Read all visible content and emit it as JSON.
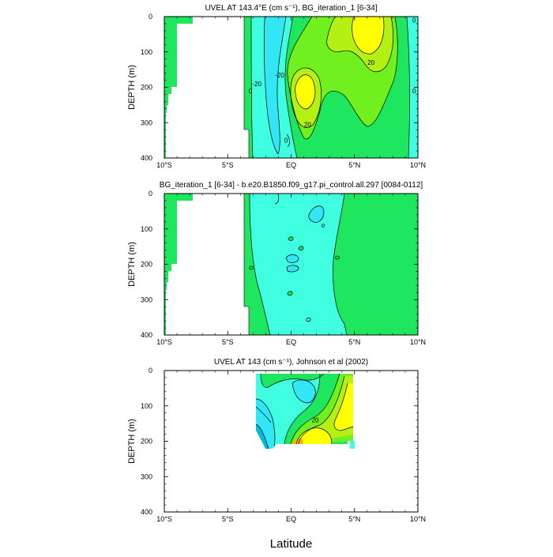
{
  "figure": {
    "xlabel": "Latitude"
  },
  "colors": {
    "cyan_dark": "#00bcd8",
    "cyan": "#33e6f5",
    "cyan_light": "#40ffe0",
    "green": "#1ee65f",
    "green_light": "#70f01e",
    "green_yellow": "#b4f014",
    "yellow": "#ffff00",
    "orange": "#ffb000",
    "line": "#000000"
  },
  "chart_data": [
    {
      "type": "contour",
      "title": "UVEL AT 143.4°E (cm s⁻¹), BG_iteration_1 [6-34]",
      "ylabel": "DEPTH (m)",
      "xlim": [
        -10,
        10
      ],
      "ylim": [
        400,
        0
      ],
      "x_ticks": [
        -10,
        -5,
        0,
        5,
        10
      ],
      "x_tick_labels": [
        "10°S",
        "5°S",
        "EQ",
        "5°N",
        "10°N"
      ],
      "y_ticks": [
        0,
        100,
        200,
        300,
        400
      ],
      "y_tick_labels": [
        "0",
        "100",
        "200",
        "300",
        "400"
      ],
      "land_edge": {
        "depth": [
          0,
          20,
          20,
          200,
          200,
          220,
          220,
          250,
          250,
          270,
          270,
          400
        ],
        "lat": [
          -7.7,
          -7.7,
          -8.5,
          -8.5,
          -9.0,
          -9.0,
          -9.3,
          -9.3,
          -9.6,
          -9.6,
          -9.8,
          -9.8
        ]
      },
      "coast_edge": {
        "depth": [
          0,
          320,
          320,
          400
        ],
        "lat": [
          -6.3,
          -6.3,
          -6.0,
          -6.0
        ]
      },
      "contour_labels": [
        {
          "lat": -2.7,
          "depth": 190,
          "text": "-20"
        },
        {
          "lat": -0.9,
          "depth": 165,
          "text": "-20"
        },
        {
          "lat": -3.2,
          "depth": 210,
          "text": "0"
        },
        {
          "lat": -0.4,
          "depth": 350,
          "text": "0"
        },
        {
          "lat": 1.3,
          "depth": 305,
          "text": "20"
        },
        {
          "lat": 6.3,
          "depth": 130,
          "text": "20"
        },
        {
          "lat": 9.7,
          "depth": 10,
          "text": "0"
        },
        {
          "lat": 9.7,
          "depth": 210,
          "text": "0"
        }
      ]
    },
    {
      "type": "contour",
      "title": "BG_iteration_1 [6-34] - b.e20.B1850.f09_g17.pi_control.all.297 [0084-0112]",
      "ylabel": "DEPTH (m)",
      "xlim": [
        -10,
        10
      ],
      "ylim": [
        400,
        0
      ],
      "x_ticks": [
        -10,
        -5,
        0,
        5,
        10
      ],
      "x_tick_labels": [
        "10°S",
        "5°S",
        "EQ",
        "5°N",
        "10°N"
      ],
      "y_ticks": [
        0,
        100,
        200,
        300,
        400
      ],
      "y_tick_labels": [
        "0",
        "100",
        "200",
        "300",
        "400"
      ],
      "land_edge": {
        "depth": [
          0,
          20,
          20,
          200,
          200,
          220,
          220,
          250,
          250,
          270,
          270,
          400
        ],
        "lat": [
          -7.7,
          -7.7,
          -8.5,
          -8.5,
          -9.0,
          -9.0,
          -9.3,
          -9.3,
          -9.6,
          -9.6,
          -9.8,
          -9.8
        ]
      },
      "coast_edge": {
        "depth": [
          0,
          320,
          320,
          400
        ],
        "lat": [
          -6.3,
          -6.3,
          -6.0,
          -6.0
        ]
      },
      "contour_labels": []
    },
    {
      "type": "contour",
      "title": "UVEL AT 143 (cm s⁻¹), Johnson et al (2002)",
      "ylabel": "DEPTH (m)",
      "xlim": [
        -10,
        10
      ],
      "ylim": [
        400,
        0
      ],
      "x_ticks": [
        -10,
        -5,
        0,
        5,
        10
      ],
      "x_tick_labels": [
        "10°S",
        "5°S",
        "EQ",
        "5°N",
        "10°N"
      ],
      "y_ticks": [
        0,
        100,
        200,
        300,
        400
      ],
      "y_tick_labels": [
        "0",
        "100",
        "200",
        "300",
        "400"
      ],
      "data_extent": {
        "lat": [
          -2.6,
          5.0
        ],
        "depth": [
          10,
          220
        ]
      },
      "contour_labels": [
        {
          "lat": 1.9,
          "depth": 140,
          "text": "20"
        }
      ]
    }
  ]
}
